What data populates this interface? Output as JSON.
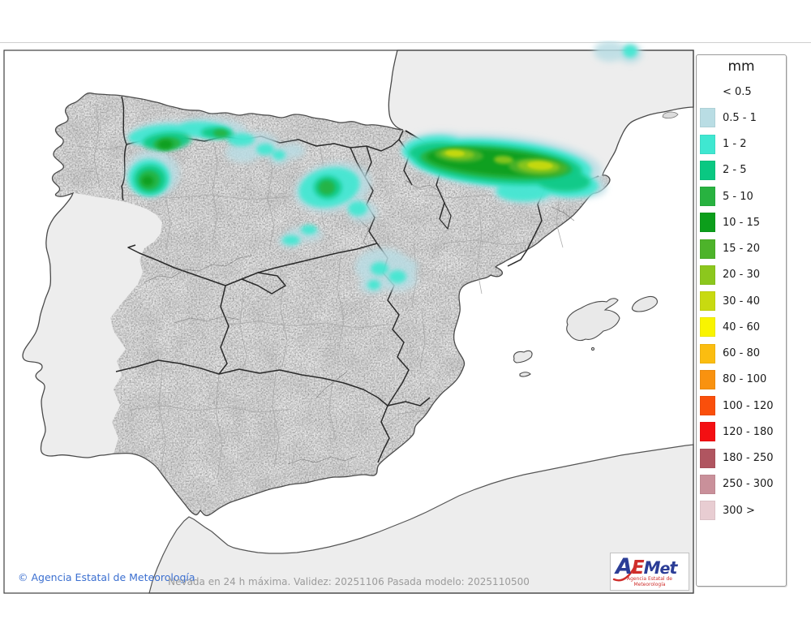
{
  "map": {
    "caption": "Nevada en 24 h máxima. Validez: 20251106 Pasada modelo: 2025110500",
    "attribution": "© Agencia Estatal de Meteorología",
    "attribution_color": "#3b6fd0",
    "caption_color": "#9b9b9b",
    "sea_color": "#ffffff",
    "spain_fill": "#e9e9e9",
    "neighbor_fill": "#ededed",
    "frame_color": "#3f3f3f",
    "coast_color": "#4a4a4a",
    "region_border_color": "#2a2a2a",
    "province_border_color": "#a5a5a5"
  },
  "legend": {
    "title": "mm",
    "entries": [
      {
        "label": "< 0.5",
        "color": null
      },
      {
        "label": "0.5 - 1",
        "color": "#b9dde4"
      },
      {
        "label": "1 - 2",
        "color": "#3fe7d1"
      },
      {
        "label": "2 - 5",
        "color": "#0ac882"
      },
      {
        "label": "5 - 10",
        "color": "#28b240"
      },
      {
        "label": "10 - 15",
        "color": "#0c9e1b"
      },
      {
        "label": "15 - 20",
        "color": "#4db32a"
      },
      {
        "label": "20 - 30",
        "color": "#8cc71d"
      },
      {
        "label": "30 - 40",
        "color": "#c8da10"
      },
      {
        "label": "40 - 60",
        "color": "#f9f400"
      },
      {
        "label": "60 - 80",
        "color": "#fbbd10"
      },
      {
        "label": "80 - 100",
        "color": "#f9920f"
      },
      {
        "label": "100 - 120",
        "color": "#fa4f0b"
      },
      {
        "label": "120 - 180",
        "color": "#f40f12"
      },
      {
        "label": "180 - 250",
        "color": "#b05560"
      },
      {
        "label": "250 - 300",
        "color": "#c9909a"
      },
      {
        "label": "300 >",
        "color": "#e8cdd2"
      }
    ]
  },
  "logo": {
    "letters": [
      {
        "ch": "A",
        "color": "#2b3d96"
      },
      {
        "ch": "E",
        "color": "#cf2e2b"
      },
      {
        "ch": "M",
        "color": "#2b3d96"
      },
      {
        "ch": "e",
        "color": "#2b3d96"
      },
      {
        "ch": "t",
        "color": "#2b3d96"
      }
    ],
    "swoosh_color": "#cf2e2b",
    "subtext": "Agencia Estatal de Meteorología",
    "subtext_color": "#cf2e2b"
  }
}
